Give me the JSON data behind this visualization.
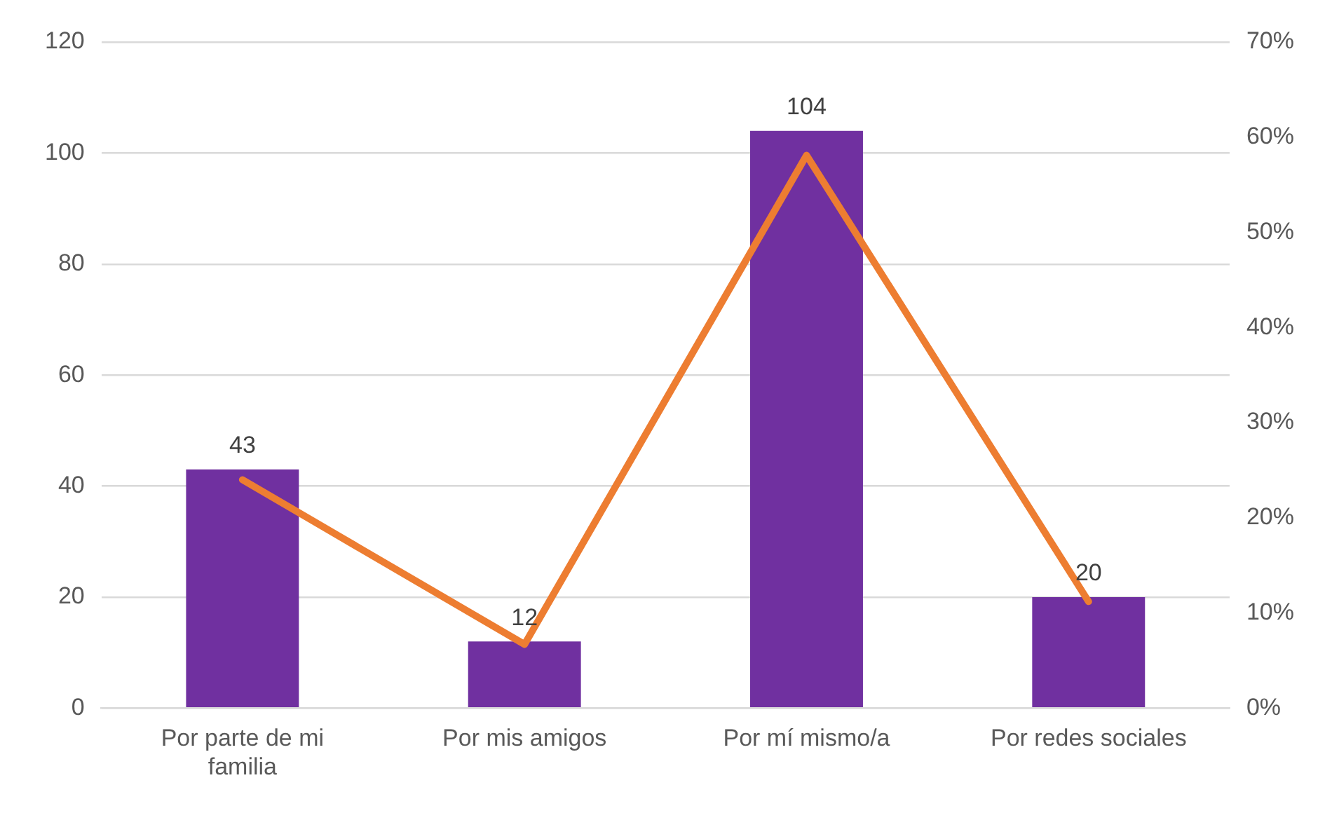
{
  "chart_data": {
    "type": "bar",
    "categories": [
      "Por parte de mi familia",
      "Por mis amigos",
      "Por mí mismo/a",
      "Por redes sociales"
    ],
    "series": [
      {
        "color": "#7030a0",
        "values": [
          43,
          12,
          104,
          20
        ],
        "value_labels": [
          "43",
          "12",
          "104",
          "20"
        ]
      },
      {
        "type": "line",
        "axis": "y2",
        "color": "#ed7d31",
        "values": [
          24,
          6.7,
          58.1,
          11.2
        ]
      }
    ],
    "ylim": [
      0,
      120
    ],
    "yticks": [
      0,
      20,
      40,
      60,
      80,
      100,
      120
    ],
    "y2lim": [
      0,
      70
    ],
    "y2ticks": [
      {
        "value": 0,
        "label": "0%"
      },
      {
        "value": 10,
        "label": "10%"
      },
      {
        "value": 20,
        "label": "20%"
      },
      {
        "value": 30,
        "label": "30%"
      },
      {
        "value": 40,
        "label": "40%"
      },
      {
        "value": 50,
        "label": "50%"
      },
      {
        "value": 60,
        "label": "60%"
      },
      {
        "value": 70,
        "label": "70%"
      }
    ],
    "grid": "y",
    "marker": "none",
    "line_style": "solid",
    "legend": false
  }
}
